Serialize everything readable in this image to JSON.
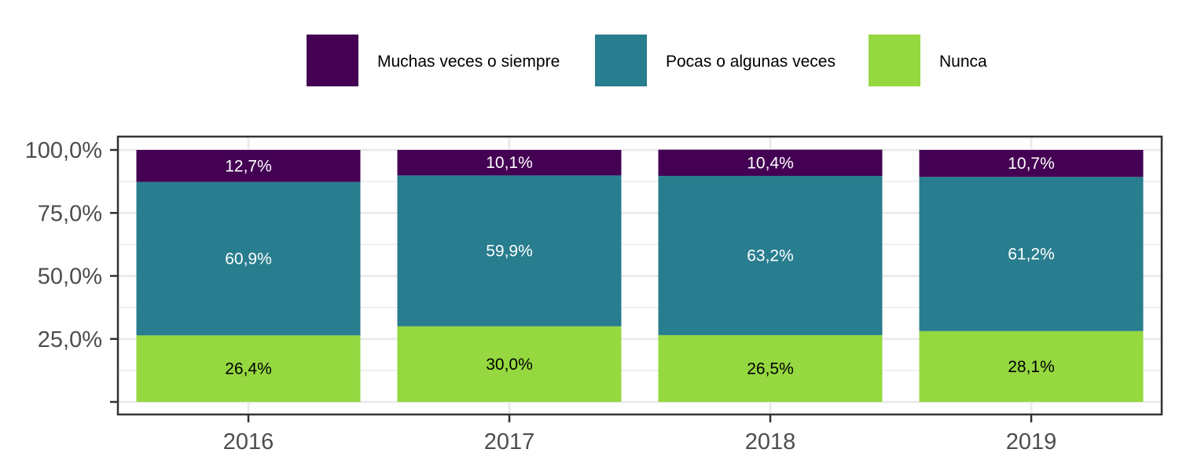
{
  "chart_data": {
    "type": "bar",
    "stacked": true,
    "categories": [
      "2016",
      "2017",
      "2018",
      "2019"
    ],
    "series": [
      {
        "name": "Muchas veces o siempre",
        "values": [
          12.7,
          10.1,
          10.4,
          10.7
        ],
        "labels": [
          "12,7%",
          "10,1%",
          "10,4%",
          "10,7%"
        ],
        "color": "#440154",
        "label_color": "#ffffff"
      },
      {
        "name": "Pocas o algunas veces",
        "values": [
          60.9,
          59.9,
          63.2,
          61.2
        ],
        "labels": [
          "60,9%",
          "59,9%",
          "63,2%",
          "61,2%"
        ],
        "color": "#287d8e",
        "label_color": "#ffffff"
      },
      {
        "name": "Nunca",
        "values": [
          26.4,
          30.0,
          26.5,
          28.1
        ],
        "labels": [
          "26,4%",
          "30,0%",
          "26,5%",
          "28,1%"
        ],
        "color": "#95d840",
        "label_color": "#000000"
      }
    ],
    "ylim": [
      0,
      100
    ],
    "yticks": [
      0,
      25,
      50,
      75,
      100
    ],
    "ytick_labels": [
      "",
      "25,0%",
      "50,0%",
      "75,0%",
      "100,0%"
    ],
    "xlabel": "",
    "ylabel": "",
    "title": "",
    "grid": true,
    "legend_position": "top"
  }
}
